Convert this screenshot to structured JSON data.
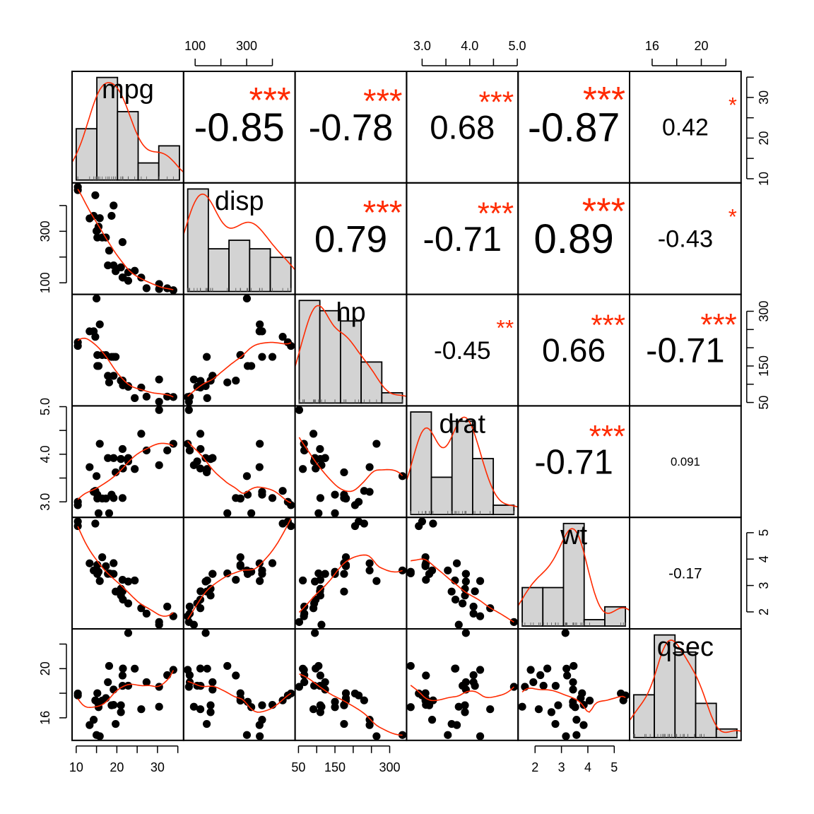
{
  "chart_data": {
    "type": "scatter-matrix",
    "variables": [
      "mpg",
      "disp",
      "hp",
      "drat",
      "wt",
      "qsec"
    ],
    "ranges": {
      "mpg": [
        10,
        35.4
      ],
      "disp": [
        71.1,
        472
      ],
      "hp": [
        52,
        335
      ],
      "drat": [
        2.76,
        4.93
      ],
      "wt": [
        1.513,
        5.424
      ],
      "qsec": [
        14.5,
        22.9
      ]
    },
    "ticks": {
      "mpg": {
        "labels": [
          "10",
          "20",
          "30"
        ],
        "minor": [
          10,
          15,
          20,
          25,
          30,
          35
        ],
        "values": [
          10,
          20,
          30
        ],
        "top": [],
        "right": [
          "10",
          "20",
          "30"
        ]
      },
      "disp": {
        "labels": [
          "100",
          "300"
        ],
        "minor": [
          100,
          200,
          300,
          400
        ],
        "values": [
          100,
          300
        ]
      },
      "hp": {
        "labels": [
          "50",
          "150",
          "300"
        ],
        "minor": [
          50,
          100,
          150,
          200,
          250,
          300
        ],
        "values": [
          50,
          150,
          300
        ]
      },
      "drat": {
        "labels": [
          "3.0",
          "4.0",
          "5.0"
        ],
        "minor": [
          3.0,
          3.5,
          4.0,
          4.5,
          5.0
        ],
        "values": [
          3.0,
          4.0,
          5.0
        ]
      },
      "wt": {
        "labels": [
          "2",
          "3",
          "4",
          "5"
        ],
        "minor": [
          2,
          3,
          4,
          5
        ],
        "values": [
          2,
          3,
          4,
          5
        ]
      },
      "qsec": {
        "labels": [
          "16",
          "20"
        ],
        "minor": [
          16,
          18,
          20,
          22
        ],
        "values": [
          16,
          20
        ]
      }
    },
    "correlations": [
      {
        "row": "mpg",
        "col": "disp",
        "r": "-0.85",
        "stars": "***"
      },
      {
        "row": "mpg",
        "col": "hp",
        "r": "-0.78",
        "stars": "***"
      },
      {
        "row": "mpg",
        "col": "drat",
        "r": "0.68",
        "stars": "***"
      },
      {
        "row": "mpg",
        "col": "wt",
        "r": "-0.87",
        "stars": "***"
      },
      {
        "row": "mpg",
        "col": "qsec",
        "r": "0.42",
        "stars": "*"
      },
      {
        "row": "disp",
        "col": "hp",
        "r": "0.79",
        "stars": "***"
      },
      {
        "row": "disp",
        "col": "drat",
        "r": "-0.71",
        "stars": "***"
      },
      {
        "row": "disp",
        "col": "wt",
        "r": "0.89",
        "stars": "***"
      },
      {
        "row": "disp",
        "col": "qsec",
        "r": "-0.43",
        "stars": "*"
      },
      {
        "row": "hp",
        "col": "drat",
        "r": "-0.45",
        "stars": "**"
      },
      {
        "row": "hp",
        "col": "wt",
        "r": "0.66",
        "stars": "***"
      },
      {
        "row": "hp",
        "col": "qsec",
        "r": "-0.71",
        "stars": "***"
      },
      {
        "row": "drat",
        "col": "wt",
        "r": "-0.71",
        "stars": "***"
      },
      {
        "row": "drat",
        "col": "qsec",
        "r": "0.091",
        "stars": ""
      },
      {
        "row": "wt",
        "col": "qsec",
        "r": "-0.17",
        "stars": ""
      }
    ],
    "observations": {
      "mpg": [
        21,
        21,
        22.8,
        21.4,
        18.7,
        18.1,
        14.3,
        24.4,
        22.8,
        19.2,
        17.8,
        16.4,
        17.3,
        15.2,
        10.4,
        10.4,
        14.7,
        32.4,
        30.4,
        33.9,
        21.5,
        15.5,
        15.2,
        13.3,
        19.2,
        27.3,
        26,
        30.4,
        15.8,
        19.7,
        15,
        21.4
      ],
      "disp": [
        160,
        160,
        108,
        258,
        360,
        225,
        360,
        146.7,
        140.8,
        167.6,
        167.6,
        275.8,
        275.8,
        275.8,
        472,
        460,
        440,
        78.7,
        75.7,
        71.1,
        120.1,
        318,
        304,
        350,
        400,
        79,
        120.3,
        95.1,
        351,
        145,
        301,
        121
      ],
      "hp": [
        110,
        110,
        93,
        110,
        175,
        105,
        245,
        62,
        95,
        123,
        123,
        180,
        180,
        180,
        205,
        215,
        230,
        66,
        52,
        65,
        97,
        150,
        150,
        245,
        175,
        66,
        91,
        113,
        264,
        175,
        335,
        109
      ],
      "drat": [
        3.9,
        3.9,
        3.85,
        3.08,
        3.15,
        2.76,
        3.21,
        3.69,
        3.92,
        3.92,
        3.92,
        3.07,
        3.07,
        3.07,
        2.93,
        3,
        3.23,
        4.08,
        4.93,
        4.22,
        3.7,
        2.76,
        3.15,
        3.73,
        3.08,
        4.08,
        4.43,
        3.77,
        4.22,
        3.62,
        3.54,
        4.11
      ],
      "wt": [
        2.62,
        2.875,
        2.32,
        3.215,
        3.44,
        3.46,
        3.57,
        3.19,
        3.15,
        3.44,
        3.44,
        4.07,
        3.73,
        3.78,
        5.25,
        5.424,
        5.345,
        2.2,
        1.615,
        1.835,
        2.465,
        3.52,
        3.435,
        3.84,
        3.845,
        1.935,
        2.14,
        1.513,
        3.17,
        2.77,
        3.57,
        2.78
      ],
      "qsec": [
        16.46,
        17.02,
        18.61,
        19.44,
        17.02,
        20.22,
        15.84,
        20,
        22.9,
        18.3,
        18.9,
        17.4,
        17.6,
        18,
        17.98,
        17.82,
        17.42,
        19.47,
        18.52,
        19.9,
        20.01,
        16.87,
        17.3,
        15.41,
        17.05,
        18.9,
        16.7,
        16.9,
        14.5,
        15.5,
        14.6,
        18.6
      ]
    },
    "colors": {
      "points": "#000000",
      "smooth": "#ff2a00",
      "stars": "#ff2a00",
      "histogram_fill": "#d3d3d3",
      "frame": "#000000"
    }
  }
}
